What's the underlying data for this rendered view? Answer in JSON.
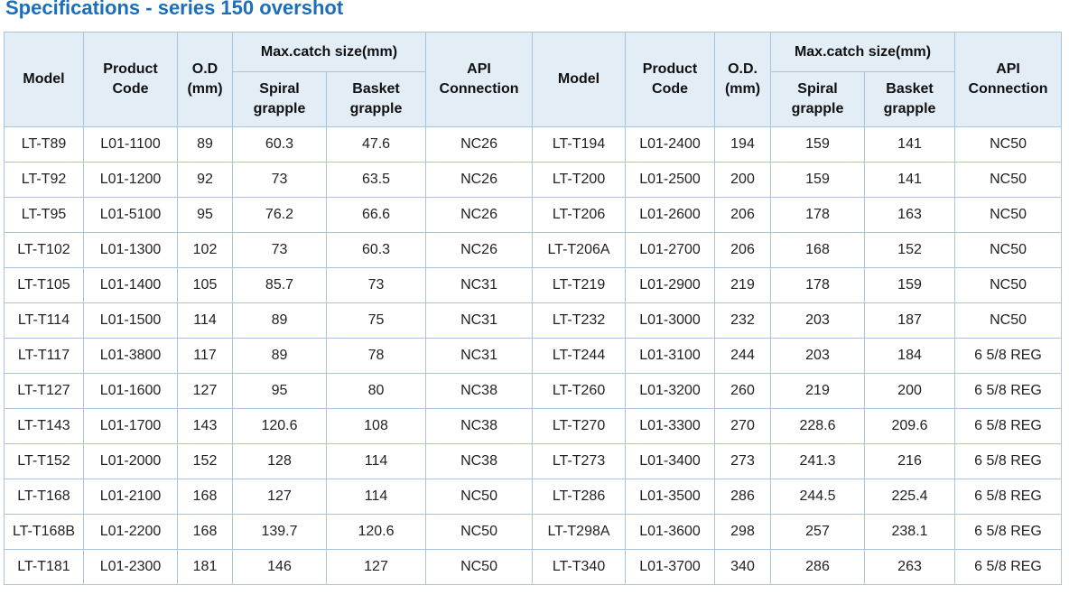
{
  "title": "Specifications - series 150 overshot",
  "headers": {
    "left": {
      "model": "Model",
      "product_code": "Product Code",
      "od": "O.D (mm)",
      "max_catch": "Max.catch size(mm)",
      "spiral": "Spiral grapple",
      "basket": "Basket grapple",
      "api": "API Connection"
    },
    "right": {
      "model": "Model",
      "product_code": "Product Code",
      "od": "O.D. (mm)",
      "max_catch": "Max.catch size(mm)",
      "spiral": "Spiral grapple",
      "basket": "Basket grapple",
      "api": "API Connection"
    }
  },
  "rows": [
    [
      "LT-T89",
      "L01-1100",
      "89",
      "60.3",
      "47.6",
      "NC26",
      "LT-T194",
      "L01-2400",
      "194",
      "159",
      "141",
      "NC50"
    ],
    [
      "LT-T92",
      "L01-1200",
      "92",
      "73",
      "63.5",
      "NC26",
      "LT-T200",
      "L01-2500",
      "200",
      "159",
      "141",
      "NC50"
    ],
    [
      "LT-T95",
      "L01-5100",
      "95",
      "76.2",
      "66.6",
      "NC26",
      "LT-T206",
      "L01-2600",
      "206",
      "178",
      "163",
      "NC50"
    ],
    [
      "LT-T102",
      "L01-1300",
      "102",
      "73",
      "60.3",
      "NC26",
      "LT-T206A",
      "L01-2700",
      "206",
      "168",
      "152",
      "NC50"
    ],
    [
      "LT-T105",
      "L01-1400",
      "105",
      "85.7",
      "73",
      "NC31",
      "LT-T219",
      "L01-2900",
      "219",
      "178",
      "159",
      "NC50"
    ],
    [
      "LT-T114",
      "L01-1500",
      "114",
      "89",
      "75",
      "NC31",
      "LT-T232",
      "L01-3000",
      "232",
      "203",
      "187",
      "NC50"
    ],
    [
      "LT-T117",
      "L01-3800",
      "117",
      "89",
      "78",
      "NC31",
      "LT-T244",
      "L01-3100",
      "244",
      "203",
      "184",
      "6 5/8 REG"
    ],
    [
      "LT-T127",
      "L01-1600",
      "127",
      "95",
      "80",
      "NC38",
      "LT-T260",
      "L01-3200",
      "260",
      "219",
      "200",
      "6 5/8 REG"
    ],
    [
      "LT-T143",
      "L01-1700",
      "143",
      "120.6",
      "108",
      "NC38",
      "LT-T270",
      "L01-3300",
      "270",
      "228.6",
      "209.6",
      "6 5/8 REG"
    ],
    [
      "LT-T152",
      "L01-2000",
      "152",
      "128",
      "114",
      "NC38",
      "LT-T273",
      "L01-3400",
      "273",
      "241.3",
      "216",
      "6 5/8 REG"
    ],
    [
      "LT-T168",
      "L01-2100",
      "168",
      "127",
      "114",
      "NC50",
      "LT-T286",
      "L01-3500",
      "286",
      "244.5",
      "225.4",
      "6 5/8 REG"
    ],
    [
      "LT-T168B",
      "L01-2200",
      "168",
      "139.7",
      "120.6",
      "NC50",
      "LT-T298A",
      "L01-3600",
      "298",
      "257",
      "238.1",
      "6 5/8 REG"
    ],
    [
      "LT-T181",
      "L01-2300",
      "181",
      "146",
      "127",
      "NC50",
      "LT-T340",
      "L01-3700",
      "340",
      "286",
      "263",
      "6 5/8 REG"
    ]
  ]
}
